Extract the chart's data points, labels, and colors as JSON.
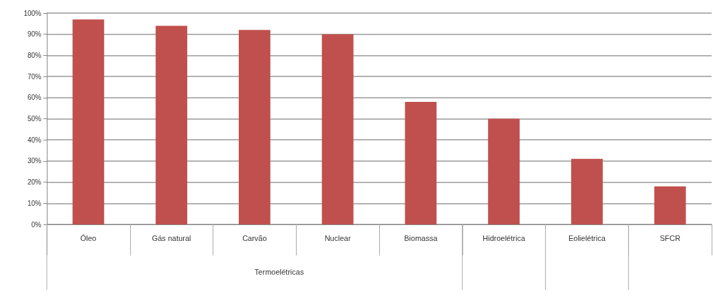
{
  "chart_data": {
    "type": "bar",
    "categories": [
      "Óleo",
      "Gás natural",
      "Carvão",
      "Nuclear",
      "Biomassa",
      "Hidroelétrica",
      "Eolielétrica",
      "SFCR"
    ],
    "values": [
      97,
      94,
      92,
      90,
      58,
      50,
      31,
      18
    ],
    "color": "#c0504d",
    "ylim": [
      0,
      100
    ],
    "yticks": [
      {
        "value": 0,
        "label": "0%"
      },
      {
        "value": 10,
        "label": "10%"
      },
      {
        "value": 20,
        "label": "20%"
      },
      {
        "value": 30,
        "label": "30%"
      },
      {
        "value": 40,
        "label": "40%"
      },
      {
        "value": 50,
        "label": "50%"
      },
      {
        "value": 60,
        "label": "60%"
      },
      {
        "value": 70,
        "label": "70%"
      },
      {
        "value": 80,
        "label": "80%"
      },
      {
        "value": 90,
        "label": "90%"
      },
      {
        "value": 100,
        "label": "100%"
      }
    ],
    "grid": "y",
    "annotations": [
      "Termoelétricas"
    ]
  }
}
